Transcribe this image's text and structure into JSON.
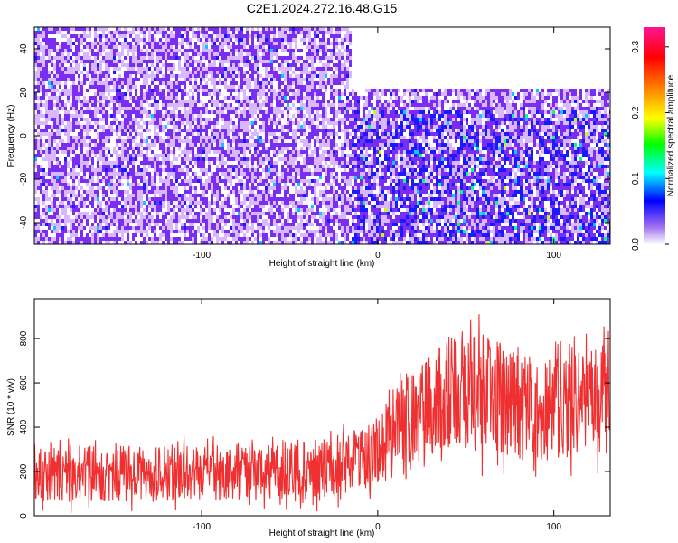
{
  "title": "C2E1.2024.272.16.48.G15",
  "chart_data": [
    {
      "type": "heatmap",
      "xlabel": "Height of straight line (km)",
      "ylabel": "Frequency (Hz)",
      "xlim": [
        -195,
        132
      ],
      "ylim": [
        -50,
        50
      ],
      "xticks": [
        -100,
        0,
        100
      ],
      "yticks": [
        -40,
        -20,
        0,
        20,
        40
      ],
      "colorbar": {
        "label": "Normalized spectral amplitude",
        "range": [
          0.0,
          0.33
        ],
        "ticks": [
          0.0,
          0.1,
          0.2,
          0.3
        ],
        "tick_labels": [
          "0.0",
          "0.1",
          "0.2",
          "0.3"
        ],
        "colors": [
          "#ffffff",
          "#8a2be2",
          "#0000ff",
          "#00ffff",
          "#00ff00",
          "#ffff00",
          "#ff8000",
          "#ff0000",
          "#ff1493"
        ]
      },
      "regions": [
        {
          "x": [
            -195,
            -15
          ],
          "y": [
            -50,
            50
          ],
          "level": 0.05
        },
        {
          "x": [
            -15,
            132
          ],
          "y": [
            -50,
            12
          ],
          "level": 0.07
        },
        {
          "x": [
            -15,
            132
          ],
          "y": [
            22,
            50
          ],
          "level": 0.01
        }
      ]
    },
    {
      "type": "line",
      "xlabel": "Height of straight line (km)",
      "ylabel": "SNR (10 * v/v)",
      "xlim": [
        -195,
        132
      ],
      "ylim": [
        0,
        980
      ],
      "xticks": [
        -100,
        0,
        100
      ],
      "yticks": [
        0,
        200,
        400,
        600,
        800
      ],
      "color": "#f03030",
      "envelope": {
        "x": [
          -195,
          -150,
          -100,
          -50,
          -15,
          -5,
          0,
          10,
          20,
          30,
          40,
          50,
          60,
          70,
          80,
          90,
          100,
          110,
          120,
          132
        ],
        "low": [
          60,
          65,
          65,
          70,
          75,
          110,
          140,
          180,
          220,
          260,
          300,
          300,
          280,
          260,
          250,
          240,
          250,
          260,
          270,
          280
        ],
        "high": [
          320,
          320,
          320,
          330,
          380,
          430,
          470,
          560,
          640,
          720,
          800,
          850,
          820,
          780,
          730,
          700,
          720,
          740,
          760,
          780
        ]
      }
    }
  ]
}
